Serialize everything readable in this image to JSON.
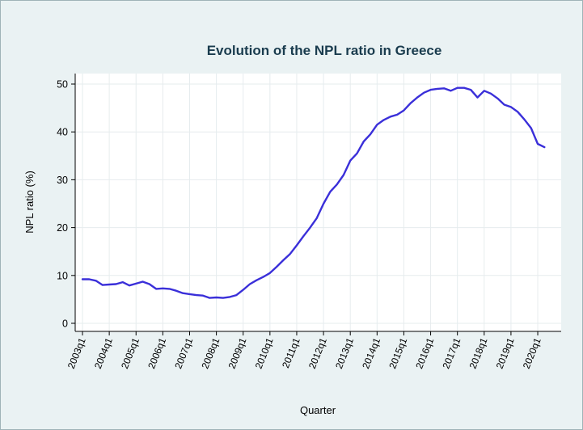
{
  "chart_data": {
    "type": "line",
    "title": "Evolution of the NPL ratio in Greece",
    "xlabel": "Quarter",
    "ylabel": "NPL ratio (%)",
    "ylim": [
      0,
      50
    ],
    "yticks": [
      0,
      10,
      20,
      30,
      40,
      50
    ],
    "xticks": [
      "2003q1",
      "2004q1",
      "2005q1",
      "2006q1",
      "2007q1",
      "2008q1",
      "2009q1",
      "2010q1",
      "2011q1",
      "2012q1",
      "2013q1",
      "2014q1",
      "2015q1",
      "2016q1",
      "2017q1",
      "2018q1",
      "2019q1",
      "2020q1"
    ],
    "grid": true,
    "legend": "none",
    "line_color": "#3a2fd9",
    "series": [
      {
        "x": [
          "2003q1",
          "2003q2",
          "2003q3",
          "2003q4",
          "2004q1",
          "2004q2",
          "2004q3",
          "2004q4",
          "2005q1",
          "2005q2",
          "2005q3",
          "2005q4",
          "2006q1",
          "2006q2",
          "2006q3",
          "2006q4",
          "2007q1",
          "2007q2",
          "2007q3",
          "2007q4",
          "2008q1",
          "2008q2",
          "2008q3",
          "2008q4",
          "2009q1",
          "2009q2",
          "2009q3",
          "2009q4",
          "2010q1",
          "2010q2",
          "2010q3",
          "2010q4",
          "2011q1",
          "2011q2",
          "2011q3",
          "2011q4",
          "2012q1",
          "2012q2",
          "2012q3",
          "2012q4",
          "2013q1",
          "2013q2",
          "2013q3",
          "2013q4",
          "2014q1",
          "2014q2",
          "2014q3",
          "2014q4",
          "2015q1",
          "2015q2",
          "2015q3",
          "2015q4",
          "2016q1",
          "2016q2",
          "2016q3",
          "2016q4",
          "2017q1",
          "2017q2",
          "2017q3",
          "2017q4",
          "2018q1",
          "2018q2",
          "2018q3",
          "2018q4",
          "2019q1",
          "2019q2",
          "2019q3",
          "2019q4",
          "2020q1",
          "2020q2"
        ],
        "values": [
          9.2,
          9.2,
          8.9,
          8.0,
          8.1,
          8.2,
          8.6,
          7.9,
          8.3,
          8.7,
          8.2,
          7.2,
          7.3,
          7.2,
          6.8,
          6.3,
          6.1,
          5.9,
          5.8,
          5.3,
          5.4,
          5.3,
          5.5,
          5.9,
          7.0,
          8.2,
          9.0,
          9.7,
          10.5,
          11.8,
          13.2,
          14.5,
          16.3,
          18.2,
          20.0,
          22.0,
          25.0,
          27.5,
          29.0,
          31.0,
          34.0,
          35.5,
          38.0,
          39.5,
          41.5,
          42.5,
          43.2,
          43.6,
          44.5,
          46.0,
          47.2,
          48.2,
          48.8,
          49.0,
          49.1,
          48.6,
          49.2,
          49.2,
          48.8,
          47.2,
          48.6,
          48.0,
          47.0,
          45.7,
          45.2,
          44.2,
          42.6,
          40.8,
          37.5,
          36.8
        ]
      }
    ]
  }
}
